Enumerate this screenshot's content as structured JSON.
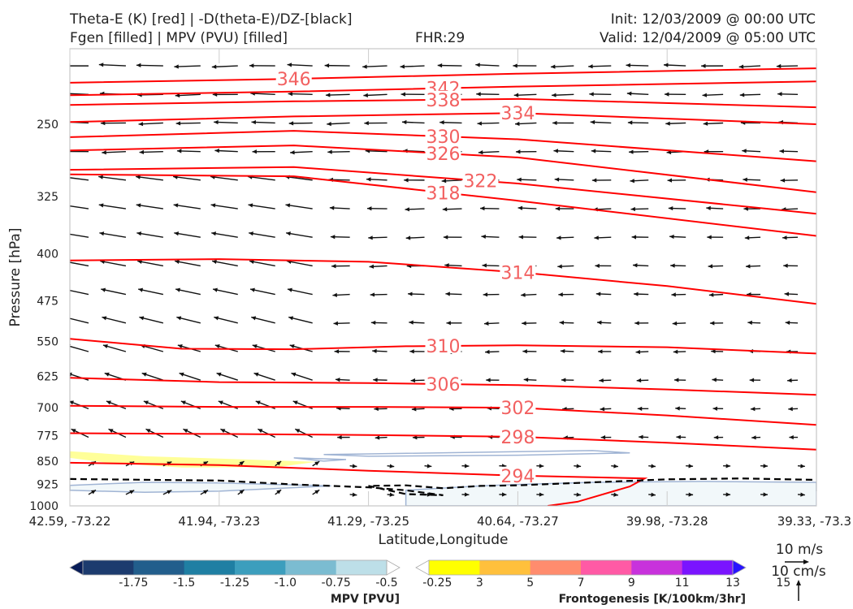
{
  "header": {
    "left_line1": "Theta-E (K) [red] | -D(theta-E)/DZ-[black]",
    "left_line2": "Fgen [filled] | MPV (PVU) [filled]",
    "center": "FHR:29",
    "right_line1": "Init: 12/03/2009 @ 00:00 UTC",
    "right_line2": "Valid: 12/04/2009 @ 05:00 UTC"
  },
  "colors": {
    "theta_e": "#ff0000",
    "theta_e_label": "#f26060",
    "stability": "#000000",
    "fgen_3_5": "#ffff99",
    "mpv_contour": "#a0b4d4",
    "mpv_fill": "#f2f8fa"
  },
  "chart_data": {
    "type": "cross-section",
    "xlabel": "Latitude,Longitude",
    "ylabel": "Pressure [hPa]",
    "x_ticks": [
      "42.59, -73.22",
      "41.94, -73.23",
      "41.29, -73.25",
      "40.64, -73.27",
      "39.98, -73.28",
      "39.33, -73.3"
    ],
    "y_ticks": [
      250,
      325,
      400,
      475,
      550,
      625,
      700,
      775,
      850,
      925,
      1000
    ],
    "ylim": [
      1000,
      190
    ],
    "y_scale": "log",
    "theta_e_contours": [
      {
        "value": 346,
        "label": "346",
        "points": [
          [
            0,
            215
          ],
          [
            0.3,
            212
          ],
          [
            0.6,
            208
          ],
          [
            1,
            204
          ]
        ]
      },
      {
        "value": 342,
        "label": "342",
        "points": [
          [
            0,
            225
          ],
          [
            0.3,
            222
          ],
          [
            0.6,
            218
          ],
          [
            1,
            214
          ]
        ]
      },
      {
        "value": 338,
        "label": "338",
        "points": [
          [
            0,
            233
          ],
          [
            0.3,
            230
          ],
          [
            0.6,
            228
          ],
          [
            1,
            235
          ]
        ]
      },
      {
        "value": 334,
        "label": "334",
        "points": [
          [
            0,
            248
          ],
          [
            0.3,
            243
          ],
          [
            0.6,
            240
          ],
          [
            1,
            250
          ]
        ]
      },
      {
        "value": 330,
        "label": "330",
        "points": [
          [
            0,
            262
          ],
          [
            0.3,
            256
          ],
          [
            0.6,
            264
          ],
          [
            1,
            286
          ]
        ]
      },
      {
        "value": 326,
        "label": "326",
        "points": [
          [
            0,
            275
          ],
          [
            0.3,
            270
          ],
          [
            0.6,
            282
          ],
          [
            1,
            320
          ]
        ]
      },
      {
        "value": 322,
        "label": "322",
        "points": [
          [
            0,
            295
          ],
          [
            0.3,
            292
          ],
          [
            0.6,
            310
          ],
          [
            1,
            346
          ]
        ]
      },
      {
        "value": 318,
        "label": "318",
        "points": [
          [
            0,
            300
          ],
          [
            0.3,
            302
          ],
          [
            0.6,
            330
          ],
          [
            1,
            375
          ]
        ]
      },
      {
        "value": 314,
        "label": "314",
        "points": [
          [
            0,
            410
          ],
          [
            0.2,
            408
          ],
          [
            0.4,
            412
          ],
          [
            0.6,
            428
          ],
          [
            0.8,
            450
          ],
          [
            1,
            480
          ]
        ]
      },
      {
        "value": 310,
        "label": "310",
        "points": [
          [
            0,
            545
          ],
          [
            0.15,
            565
          ],
          [
            0.3,
            566
          ],
          [
            0.45,
            560
          ],
          [
            0.6,
            558
          ],
          [
            0.8,
            562
          ],
          [
            1,
            575
          ]
        ]
      },
      {
        "value": 306,
        "label": "306",
        "points": [
          [
            0,
            628
          ],
          [
            0.2,
            638
          ],
          [
            0.4,
            640
          ],
          [
            0.6,
            645
          ],
          [
            0.8,
            655
          ],
          [
            1,
            668
          ]
        ]
      },
      {
        "value": 302,
        "label": "302",
        "points": [
          [
            0,
            695
          ],
          [
            0.2,
            698
          ],
          [
            0.4,
            698
          ],
          [
            0.6,
            700
          ],
          [
            0.8,
            720
          ],
          [
            1,
            745
          ]
        ]
      },
      {
        "value": 298,
        "label": "298",
        "points": [
          [
            0,
            768
          ],
          [
            0.2,
            770
          ],
          [
            0.4,
            773
          ],
          [
            0.6,
            778
          ],
          [
            0.8,
            795
          ],
          [
            1,
            815
          ]
        ]
      },
      {
        "value": 294,
        "label": "294",
        "points": [
          [
            0,
            855
          ],
          [
            0.2,
            862
          ],
          [
            0.4,
            880
          ],
          [
            0.6,
            896
          ],
          [
            0.77,
            905
          ],
          [
            0.75,
            932
          ],
          [
            0.68,
            985
          ],
          [
            0.64,
            1000
          ]
        ]
      }
    ],
    "stability_contour": {
      "style": "dashed",
      "points": [
        [
          0,
          907
        ],
        [
          0.2,
          912
        ],
        [
          0.3,
          925
        ],
        [
          0.4,
          935
        ],
        [
          0.45,
          945
        ],
        [
          0.5,
          962
        ],
        [
          0.45,
          958
        ],
        [
          0.4,
          930
        ],
        [
          0.45,
          928
        ],
        [
          0.5,
          938
        ],
        [
          0.55,
          930
        ],
        [
          0.6,
          928
        ],
        [
          0.7,
          918
        ],
        [
          0.8,
          908
        ],
        [
          0.9,
          905
        ],
        [
          1,
          910
        ]
      ]
    },
    "fgen_fill": [
      {
        "level": "3-5",
        "points": [
          [
            0,
            820
          ],
          [
            0.1,
            835
          ],
          [
            0.2,
            842
          ],
          [
            0.33,
            852
          ],
          [
            0.28,
            868
          ],
          [
            0.15,
            870
          ],
          [
            0.05,
            855
          ],
          [
            0,
            840
          ]
        ]
      }
    ],
    "mpv_fill": [
      {
        "level": "-0.25",
        "points": [
          [
            0,
            928
          ],
          [
            0.1,
            918
          ],
          [
            0.2,
            920
          ],
          [
            0.35,
            930
          ],
          [
            0.2,
            948
          ],
          [
            0.1,
            952
          ],
          [
            0,
            945
          ]
        ]
      },
      {
        "level": "-0.25",
        "points": [
          [
            0.45,
            945
          ],
          [
            0.55,
            930
          ],
          [
            0.6,
            925
          ],
          [
            0.7,
            918
          ],
          [
            0.85,
            915
          ],
          [
            1,
            918
          ],
          [
            1,
            1000
          ],
          [
            0.45,
            1000
          ]
        ]
      }
    ],
    "mpv_contours": [
      [
        [
          0.34,
          850
        ],
        [
          0.3,
          840
        ],
        [
          0.37,
          845
        ],
        [
          0.34,
          850
        ]
      ],
      [
        [
          0.34,
          830
        ],
        [
          0.4,
          828
        ],
        [
          0.7,
          818
        ],
        [
          0.75,
          825
        ],
        [
          0.6,
          832
        ],
        [
          0.4,
          835
        ],
        [
          0.34,
          830
        ]
      ]
    ],
    "colorbars": [
      {
        "title": "MPV [PVU]",
        "colors": [
          "#081d58",
          "#1c3b6e",
          "#225e8c",
          "#1f7fa3",
          "#3c9ebd",
          "#7bbcd1",
          "#bddfe8",
          "#ffffff"
        ],
        "tick_labels": [
          "-1.75",
          "-1.5",
          "-1.25",
          "-1.0",
          "-0.75",
          "-0.5",
          "-0.25"
        ]
      },
      {
        "title": "Frontogenesis [K/100km/3hr]",
        "colors": [
          "#ffffff",
          "#ffff00",
          "#ffc03c",
          "#ff8c6e",
          "#ff5aa5",
          "#c832dc",
          "#7a14ff",
          "#2814ff"
        ],
        "tick_labels": [
          "3",
          "5",
          "7",
          "9",
          "11",
          "13",
          "15"
        ]
      }
    ],
    "wind_key": {
      "horizontal": "10 m/s",
      "vertical": "10 cm/s"
    }
  }
}
